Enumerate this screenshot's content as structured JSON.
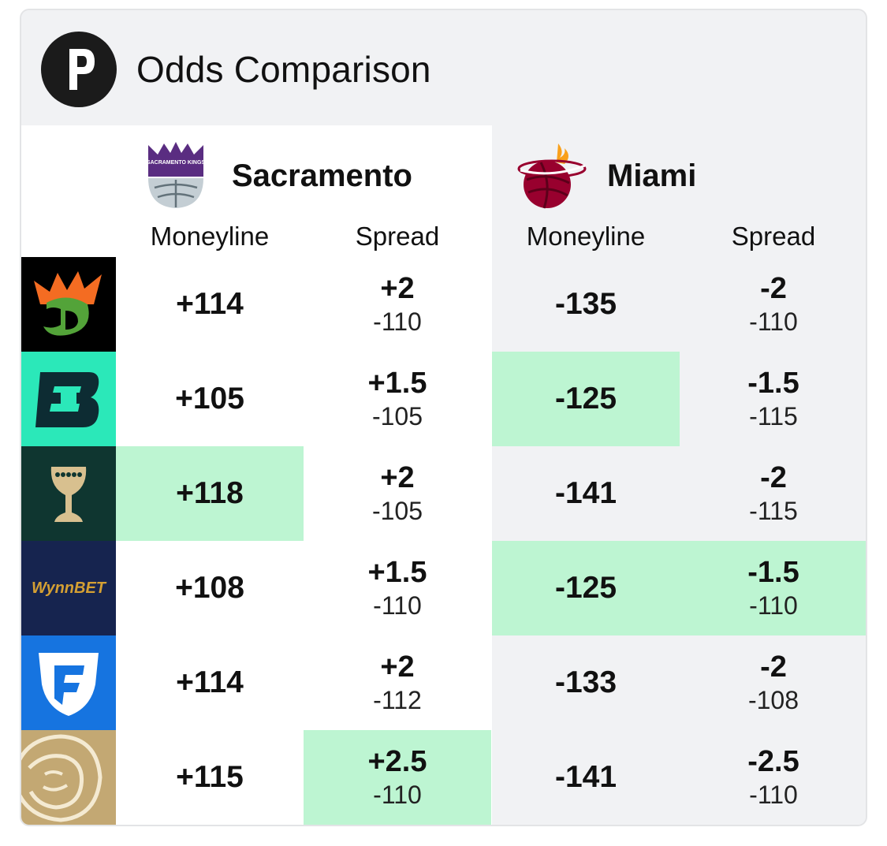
{
  "header": {
    "title": "Odds Comparison",
    "logo_icon": "pickswise-p-logo"
  },
  "teams": [
    {
      "name": "Sacramento",
      "logo_icon": "sacramento-kings-logo",
      "logo_text": "SACRAMENTO KINGS"
    },
    {
      "name": "Miami",
      "logo_icon": "miami-heat-logo"
    }
  ],
  "columns": [
    "Moneyline",
    "Spread",
    "Moneyline",
    "Spread"
  ],
  "highlight_color": "#bdf5d2",
  "rows": [
    {
      "book": "DraftKings",
      "book_icon": "draftkings-crown-logo",
      "away_ml": "+114",
      "away_spread": "+2",
      "away_spread_price": "-110",
      "home_ml": "-135",
      "home_spread": "-2",
      "home_spread_price": "-110",
      "best": []
    },
    {
      "book": "ESPN BET",
      "book_icon": "espnbet-logo",
      "away_ml": "+105",
      "away_spread": "+1.5",
      "away_spread_price": "-105",
      "home_ml": "-125",
      "home_spread": "-1.5",
      "home_spread_price": "-115",
      "best": [
        "home_ml"
      ]
    },
    {
      "book": "Caesars",
      "book_icon": "caesars-chalice-logo",
      "away_ml": "+118",
      "away_spread": "+2",
      "away_spread_price": "-105",
      "home_ml": "-141",
      "home_spread": "-2",
      "home_spread_price": "-115",
      "best": [
        "away_ml"
      ]
    },
    {
      "book": "WynnBET",
      "book_icon": "wynnbet-logo",
      "book_text": "WynnBET",
      "away_ml": "+108",
      "away_spread": "+1.5",
      "away_spread_price": "-110",
      "home_ml": "-125",
      "home_spread": "-1.5",
      "home_spread_price": "-110",
      "best": [
        "home_ml",
        "home_spread"
      ]
    },
    {
      "book": "FanDuel",
      "book_icon": "fanduel-shield-logo",
      "away_ml": "+114",
      "away_spread": "+2",
      "away_spread_price": "-112",
      "home_ml": "-133",
      "home_spread": "-2",
      "home_spread_price": "-108",
      "best": []
    },
    {
      "book": "BetMGM",
      "book_icon": "betmgm-lion-logo",
      "away_ml": "+115",
      "away_spread": "+2.5",
      "away_spread_price": "-110",
      "home_ml": "-141",
      "home_spread": "-2.5",
      "home_spread_price": "-110",
      "best": [
        "away_spread"
      ]
    }
  ]
}
